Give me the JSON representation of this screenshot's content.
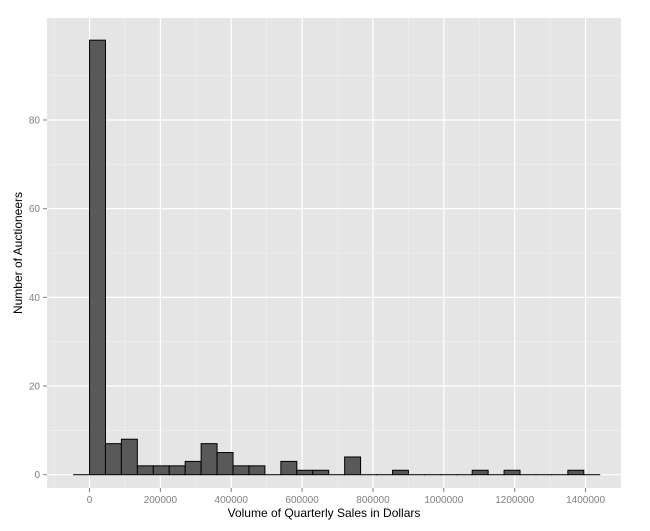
{
  "chart_data": {
    "type": "bar",
    "subtype": "histogram",
    "title": "",
    "xlabel": "Volume of Quarterly Sales in Dollars",
    "ylabel": "Number of Auctioneers",
    "bin_width": 45000,
    "bins_start": [
      -45000,
      0,
      45000,
      90000,
      135000,
      180000,
      225000,
      270000,
      315000,
      360000,
      405000,
      450000,
      495000,
      540000,
      585000,
      630000,
      675000,
      720000,
      765000,
      810000,
      855000,
      900000,
      945000,
      990000,
      1035000,
      1080000,
      1125000,
      1170000,
      1215000,
      1260000,
      1305000,
      1350000,
      1395000
    ],
    "values": [
      0,
      98,
      7,
      8,
      2,
      2,
      2,
      3,
      7,
      5,
      2,
      2,
      0,
      3,
      1,
      1,
      0,
      4,
      0,
      0,
      1,
      0,
      0,
      0,
      0,
      1,
      0,
      1,
      0,
      0,
      0,
      1,
      0
    ],
    "xlim": [
      -120000,
      1500000
    ],
    "ylim": [
      -3,
      103
    ],
    "x_ticks": [
      0,
      200000,
      400000,
      600000,
      800000,
      1000000,
      1200000,
      1400000
    ],
    "x_tick_labels": [
      "0",
      "200000",
      "400000",
      "600000",
      "800000",
      "1000000",
      "1200000",
      "1400000"
    ],
    "y_ticks": [
      0,
      20,
      40,
      60,
      80
    ],
    "y_tick_labels": [
      "0",
      "20",
      "40",
      "60",
      "80"
    ],
    "grid": true,
    "legend": "none",
    "colors": {
      "panel_background": "#e5e5e5",
      "grid_major": "#ffffff",
      "grid_minor": "#f2f2f2",
      "bar_fill": "#595959",
      "bar_outline": "#000000",
      "tick_label": "#7f7f7f",
      "axis_title": "#000000"
    }
  }
}
